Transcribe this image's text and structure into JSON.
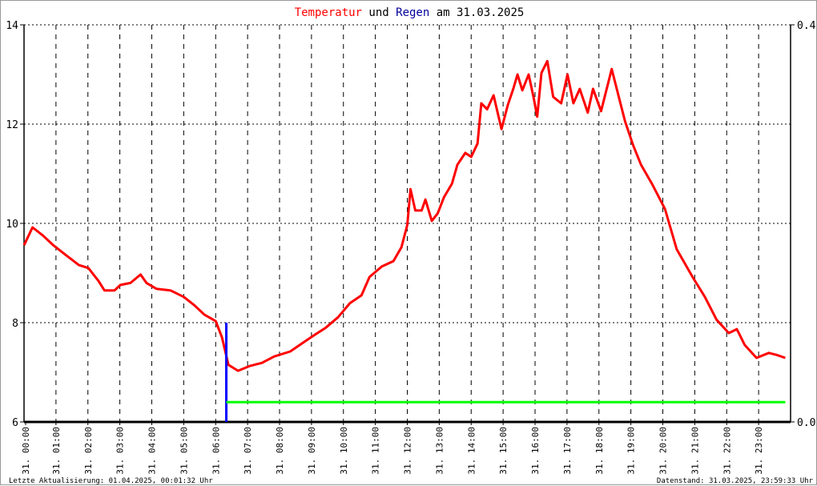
{
  "chart_data": {
    "type": "line",
    "title": {
      "part1": "Temperatur",
      "part2": " und ",
      "part3": "Regen",
      "part4": " am 31.03.2025"
    },
    "title_colors": {
      "temperature": "#ff0000",
      "rain": "#000099",
      "text": "#000000"
    },
    "y_left": {
      "range": [
        6,
        14
      ],
      "ticks": [
        "6",
        "8",
        "10",
        "12",
        "14"
      ]
    },
    "y_right": {
      "range": [
        0.0,
        0.4
      ],
      "ticks": [
        "0.0",
        "0.4"
      ]
    },
    "x_range": [
      "00:00",
      "24:00"
    ],
    "x_ticks": [
      "31. 00:00",
      "31. 01:00",
      "31. 02:00",
      "31. 03:00",
      "31. 04:00",
      "31. 05:00",
      "31. 06:00",
      "31. 07:00",
      "31. 08:00",
      "31. 09:00",
      "31. 10:00",
      "31. 11:00",
      "31. 12:00",
      "31. 13:00",
      "31. 14:00",
      "31. 15:00",
      "31. 16:00",
      "31. 17:00",
      "31. 18:00",
      "31. 19:00",
      "31. 20:00",
      "31. 21:00",
      "31. 22:00",
      "31. 23:00"
    ],
    "grid": true,
    "series": [
      {
        "color": "#ff0000",
        "axis": "left",
        "points": [
          [
            "00:00",
            9.56
          ],
          [
            "00:16",
            9.92
          ],
          [
            "00:35",
            9.76
          ],
          [
            "00:55",
            9.56
          ],
          [
            "01:20",
            9.35
          ],
          [
            "01:43",
            9.16
          ],
          [
            "02:01",
            9.1
          ],
          [
            "02:20",
            8.84
          ],
          [
            "02:31",
            8.65
          ],
          [
            "02:50",
            8.65
          ],
          [
            "03:01",
            8.76
          ],
          [
            "03:20",
            8.8
          ],
          [
            "03:39",
            8.97
          ],
          [
            "03:50",
            8.8
          ],
          [
            "04:09",
            8.68
          ],
          [
            "04:35",
            8.65
          ],
          [
            "05:00",
            8.52
          ],
          [
            "05:20",
            8.35
          ],
          [
            "05:39",
            8.16
          ],
          [
            "06:00",
            8.03
          ],
          [
            "06:12",
            7.7
          ],
          [
            "06:24",
            7.15
          ],
          [
            "06:42",
            7.03
          ],
          [
            "07:05",
            7.13
          ],
          [
            "07:27",
            7.19
          ],
          [
            "07:50",
            7.32
          ],
          [
            "08:20",
            7.42
          ],
          [
            "08:42",
            7.58
          ],
          [
            "09:04",
            7.74
          ],
          [
            "09:27",
            7.9
          ],
          [
            "09:50",
            8.11
          ],
          [
            "10:12",
            8.39
          ],
          [
            "10:34",
            8.55
          ],
          [
            "10:49",
            8.92
          ],
          [
            "11:12",
            9.13
          ],
          [
            "11:34",
            9.24
          ],
          [
            "11:49",
            9.52
          ],
          [
            "12:00",
            9.97
          ],
          [
            "12:06",
            10.69
          ],
          [
            "12:15",
            10.26
          ],
          [
            "12:27",
            10.26
          ],
          [
            "12:34",
            10.48
          ],
          [
            "12:46",
            10.05
          ],
          [
            "12:57",
            10.2
          ],
          [
            "13:09",
            10.53
          ],
          [
            "13:24",
            10.8
          ],
          [
            "13:34",
            11.18
          ],
          [
            "13:49",
            11.42
          ],
          [
            "14:00",
            11.34
          ],
          [
            "14:12",
            11.61
          ],
          [
            "14:19",
            12.42
          ],
          [
            "14:30",
            12.3
          ],
          [
            "14:42",
            12.58
          ],
          [
            "14:57",
            11.9
          ],
          [
            "15:09",
            12.39
          ],
          [
            "15:19",
            12.71
          ],
          [
            "15:27",
            13.0
          ],
          [
            "15:36",
            12.68
          ],
          [
            "15:48",
            13.0
          ],
          [
            "15:57",
            12.55
          ],
          [
            "16:04",
            12.15
          ],
          [
            "16:12",
            13.03
          ],
          [
            "16:23",
            13.27
          ],
          [
            "16:34",
            12.55
          ],
          [
            "16:49",
            12.42
          ],
          [
            "17:01",
            13.0
          ],
          [
            "17:12",
            12.42
          ],
          [
            "17:24",
            12.71
          ],
          [
            "17:39",
            12.23
          ],
          [
            "17:49",
            12.71
          ],
          [
            "18:04",
            12.26
          ],
          [
            "18:24",
            13.11
          ],
          [
            "18:38",
            12.52
          ],
          [
            "18:49",
            12.06
          ],
          [
            "19:04",
            11.58
          ],
          [
            "19:19",
            11.18
          ],
          [
            "19:41",
            10.77
          ],
          [
            "20:04",
            10.29
          ],
          [
            "20:26",
            9.48
          ],
          [
            "20:56",
            8.92
          ],
          [
            "21:19",
            8.52
          ],
          [
            "21:41",
            8.06
          ],
          [
            "22:04",
            7.79
          ],
          [
            "22:19",
            7.87
          ],
          [
            "22:34",
            7.55
          ],
          [
            "22:56",
            7.29
          ],
          [
            "23:19",
            7.39
          ],
          [
            "23:34",
            7.35
          ],
          [
            "23:50",
            7.29
          ]
        ]
      },
      {
        "color": "#0000ff",
        "axis": "right",
        "type": "bar",
        "points": [
          [
            "06:20",
            0.1
          ]
        ]
      },
      {
        "color": "#00ff00",
        "axis": "right",
        "type": "step",
        "points": [
          [
            "06:20",
            0.02
          ],
          [
            "23:50",
            0.02
          ]
        ]
      }
    ]
  },
  "footer": {
    "left": "Letzte Aktualisierung: 01.04.2025, 00:01:32 Uhr",
    "right": "Datenstand: 31.03.2025, 23:59:33 Uhr"
  }
}
